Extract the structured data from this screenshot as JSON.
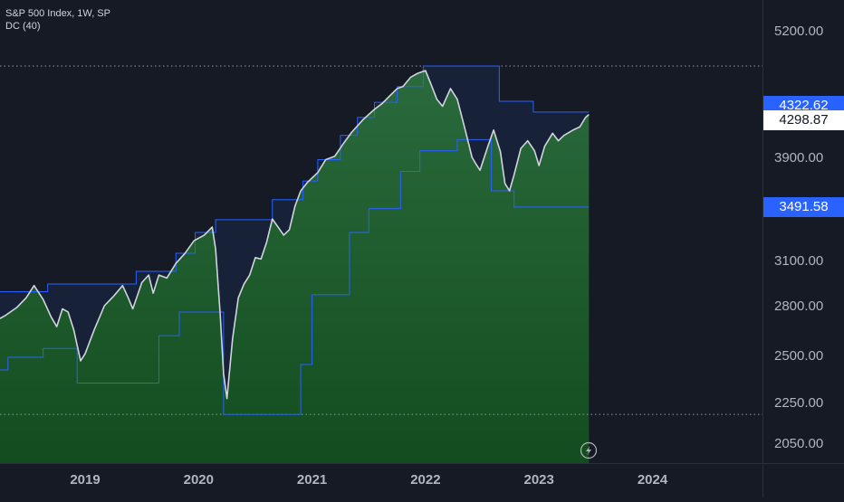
{
  "header": {
    "title": "S&P 500 Index, 1W, SP",
    "indicator": "DC (40)"
  },
  "badges": {
    "upper": "4322.62",
    "last": "4298.87",
    "lower": "3491.58"
  },
  "colors": {
    "background": "#161a25",
    "channel_line": "#2962ff",
    "price_line": "#d1d4dc",
    "fill_below": "#1e5a2c",
    "fill_above": "#172238",
    "dotted": "#9598a1"
  },
  "icons": {
    "replay": "lightning-icon"
  },
  "chart_data": {
    "type": "line",
    "title": "S&P 500 Index, 1W, SP",
    "indicator": "DC (40)",
    "y_tick_labels": [
      "5200.00",
      "3900.00",
      "3100.00",
      "2800.00",
      "2500.00",
      "2250.00",
      "2050.00"
    ],
    "x_tick_labels": [
      "2019",
      "2020",
      "2021",
      "2022",
      "2023",
      "2024"
    ],
    "ylim": [
      1950,
      5500
    ],
    "xlim": [
      2018.2,
      2024.95
    ],
    "grid": false,
    "dotted_levels": [
      4800,
      2190
    ],
    "last_price": 4298.87,
    "series": [
      {
        "key": "close",
        "x": [
          2018.2,
          2018.3,
          2018.4,
          2018.48,
          2018.55,
          2018.63,
          2018.7,
          2018.75,
          2018.8,
          2018.85,
          2018.9,
          2018.96,
          2019.0,
          2019.08,
          2019.17,
          2019.25,
          2019.33,
          2019.38,
          2019.42,
          2019.5,
          2019.56,
          2019.6,
          2019.65,
          2019.72,
          2019.8,
          2019.88,
          2019.96,
          2020.05,
          2020.12,
          2020.15,
          2020.19,
          2020.22,
          2020.25,
          2020.3,
          2020.35,
          2020.4,
          2020.45,
          2020.5,
          2020.55,
          2020.6,
          2020.65,
          2020.7,
          2020.75,
          2020.8,
          2020.85,
          2020.9,
          2020.96,
          2021.05,
          2021.12,
          2021.2,
          2021.28,
          2021.35,
          2021.45,
          2021.55,
          2021.62,
          2021.68,
          2021.75,
          2021.8,
          2021.87,
          2021.93,
          2022.0,
          2022.05,
          2022.1,
          2022.15,
          2022.22,
          2022.28,
          2022.35,
          2022.41,
          2022.44,
          2022.48,
          2022.55,
          2022.6,
          2022.66,
          2022.7,
          2022.74,
          2022.78,
          2022.84,
          2022.9,
          2022.96,
          2023.0,
          2023.05,
          2023.12,
          2023.17,
          2023.22,
          2023.3,
          2023.36,
          2023.41,
          2023.44
        ],
        "y": [
          2700,
          2740,
          2790,
          2850,
          2930,
          2840,
          2730,
          2670,
          2780,
          2760,
          2650,
          2470,
          2510,
          2650,
          2800,
          2860,
          2930,
          2850,
          2780,
          2950,
          3000,
          2880,
          3000,
          2980,
          3080,
          3150,
          3240,
          3280,
          3340,
          3180,
          2750,
          2400,
          2270,
          2600,
          2850,
          2940,
          3000,
          3120,
          3110,
          3230,
          3400,
          3340,
          3280,
          3320,
          3500,
          3620,
          3690,
          3770,
          3880,
          3910,
          4030,
          4130,
          4250,
          4350,
          4410,
          4480,
          4560,
          4580,
          4680,
          4720,
          4750,
          4600,
          4450,
          4380,
          4560,
          4450,
          4150,
          3900,
          3850,
          3790,
          4000,
          4150,
          3950,
          3680,
          3620,
          3750,
          3980,
          4050,
          3960,
          3830,
          4000,
          4120,
          4050,
          4100,
          4150,
          4180,
          4270,
          4298.87
        ]
      },
      {
        "key": "donchian_upper",
        "x": [
          2018.2,
          2018.67,
          2018.67,
          2019.45,
          2019.45,
          2019.8,
          2019.8,
          2019.97,
          2019.97,
          2020.15,
          2020.15,
          2020.65,
          2020.65,
          2020.92,
          2020.92,
          2021.05,
          2021.05,
          2021.25,
          2021.25,
          2021.4,
          2021.4,
          2021.55,
          2021.55,
          2021.75,
          2021.75,
          2021.98,
          2021.98,
          2022.65,
          2022.65,
          2022.95,
          2022.95,
          2023.44
        ],
        "y": [
          2890,
          2890,
          2940,
          2940,
          3025,
          3025,
          3150,
          3150,
          3300,
          3300,
          3395,
          3395,
          3550,
          3550,
          3700,
          3700,
          3880,
          3880,
          4100,
          4100,
          4270,
          4270,
          4420,
          4420,
          4580,
          4580,
          4800,
          4800,
          4430,
          4430,
          4322.62,
          4322.62
        ]
      },
      {
        "key": "donchian_lower",
        "x": [
          2018.2,
          2018.32,
          2018.32,
          2018.63,
          2018.63,
          2018.93,
          2018.93,
          2019.65,
          2019.65,
          2019.83,
          2019.83,
          2020.22,
          2020.22,
          2020.9,
          2020.9,
          2021.0,
          2021.0,
          2021.33,
          2021.33,
          2021.5,
          2021.5,
          2021.78,
          2021.78,
          2021.95,
          2021.95,
          2022.28,
          2022.28,
          2022.58,
          2022.58,
          2022.78,
          2022.78,
          2023.44
        ],
        "y": [
          2420,
          2420,
          2490,
          2490,
          2540,
          2540,
          2350,
          2350,
          2615,
          2615,
          2760,
          2760,
          2190,
          2190,
          2450,
          2450,
          2870,
          2870,
          3300,
          3300,
          3480,
          3480,
          3780,
          3780,
          3960,
          3960,
          4060,
          4060,
          3620,
          3620,
          3491.58,
          3491.58
        ]
      }
    ]
  }
}
